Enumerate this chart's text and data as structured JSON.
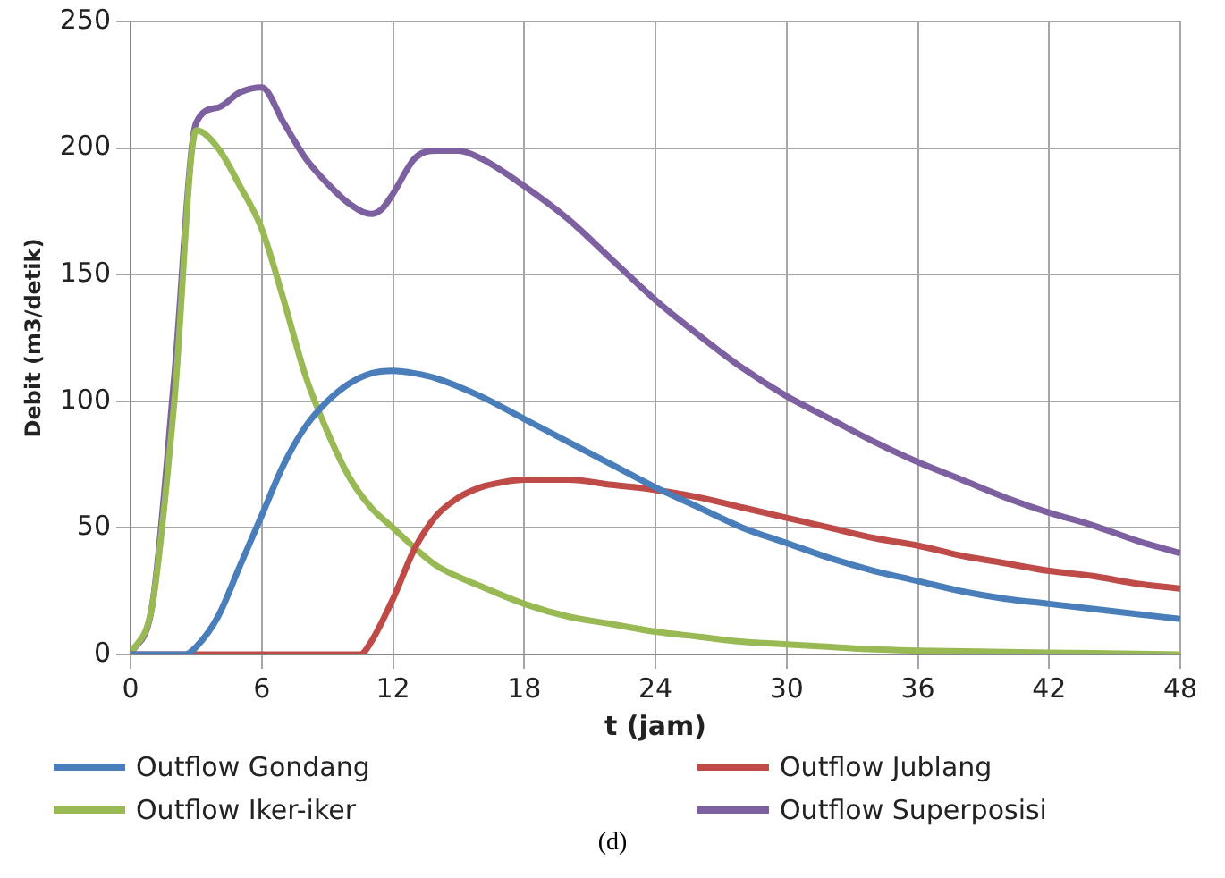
{
  "chart_data": {
    "type": "line",
    "xlabel": "t (jam)",
    "ylabel": "Debit (m3/detik)",
    "xlim": [
      0,
      48
    ],
    "xticks": [
      0,
      6,
      12,
      18,
      24,
      30,
      36,
      42,
      48
    ],
    "ylim": [
      0,
      250
    ],
    "yticks": [
      0,
      50,
      100,
      150,
      200,
      250
    ],
    "grid": true,
    "legend": "bottom",
    "marker": "none",
    "line_style": "solid",
    "annotations": [
      "(d)"
    ],
    "series": [
      {
        "name": "Outflow Gondang",
        "color": "#4a7ebb",
        "x": [
          0,
          2.5,
          3,
          4,
          5,
          6,
          7,
          8,
          9,
          10,
          11,
          12,
          13,
          14,
          16,
          18,
          20,
          22,
          24,
          26,
          28,
          30,
          32,
          34,
          36,
          38,
          40,
          42,
          44,
          46,
          48
        ],
        "values": [
          0,
          0,
          3,
          15,
          35,
          55,
          75,
          90,
          100,
          107,
          111,
          112,
          111,
          109,
          102,
          93,
          84,
          75,
          66,
          58,
          50,
          44,
          38,
          33,
          29,
          25,
          22,
          20,
          18,
          16,
          14
        ]
      },
      {
        "name": "Outflow Jublang",
        "color": "#be4b48",
        "x": [
          0,
          10.5,
          11,
          12,
          13,
          14,
          15,
          16,
          17,
          18,
          19,
          20,
          22,
          24,
          26,
          28,
          30,
          32,
          34,
          36,
          38,
          40,
          42,
          44,
          46,
          48
        ],
        "values": [
          0,
          0,
          5,
          22,
          42,
          55,
          62,
          66,
          68,
          69,
          69,
          69,
          67,
          65,
          62,
          58,
          54,
          50,
          46,
          43,
          39,
          36,
          33,
          31,
          28,
          26
        ]
      },
      {
        "name": "Outflow Iker-iker",
        "color": "#98b954",
        "x": [
          0,
          1,
          2,
          3,
          4,
          5,
          6,
          7,
          8,
          9,
          10,
          11,
          12,
          13,
          14,
          16,
          18,
          20,
          22,
          24,
          26,
          28,
          30,
          32,
          34,
          36,
          40,
          44,
          48
        ],
        "values": [
          0,
          20,
          100,
          207,
          200,
          185,
          168,
          140,
          110,
          88,
          70,
          58,
          50,
          42,
          35,
          27,
          20,
          15,
          12,
          9,
          7,
          5,
          4,
          3,
          2,
          1.5,
          1,
          0.5,
          0
        ]
      },
      {
        "name": "Outflow Superposisi",
        "color": "#7d60a0",
        "x": [
          0,
          1,
          2,
          3,
          4,
          5,
          6,
          7,
          8,
          9,
          10,
          11,
          11.5,
          12,
          13,
          14,
          15,
          16,
          18,
          20,
          22,
          24,
          26,
          28,
          30,
          32,
          34,
          36,
          38,
          40,
          42,
          44,
          46,
          48
        ],
        "values": [
          0,
          20,
          110,
          210,
          216,
          222,
          224,
          210,
          196,
          186,
          178,
          174,
          176,
          182,
          196,
          199,
          199,
          196,
          185,
          172,
          156,
          140,
          126,
          113,
          102,
          93,
          84,
          76,
          69,
          62,
          56,
          51,
          45,
          40
        ]
      }
    ]
  }
}
